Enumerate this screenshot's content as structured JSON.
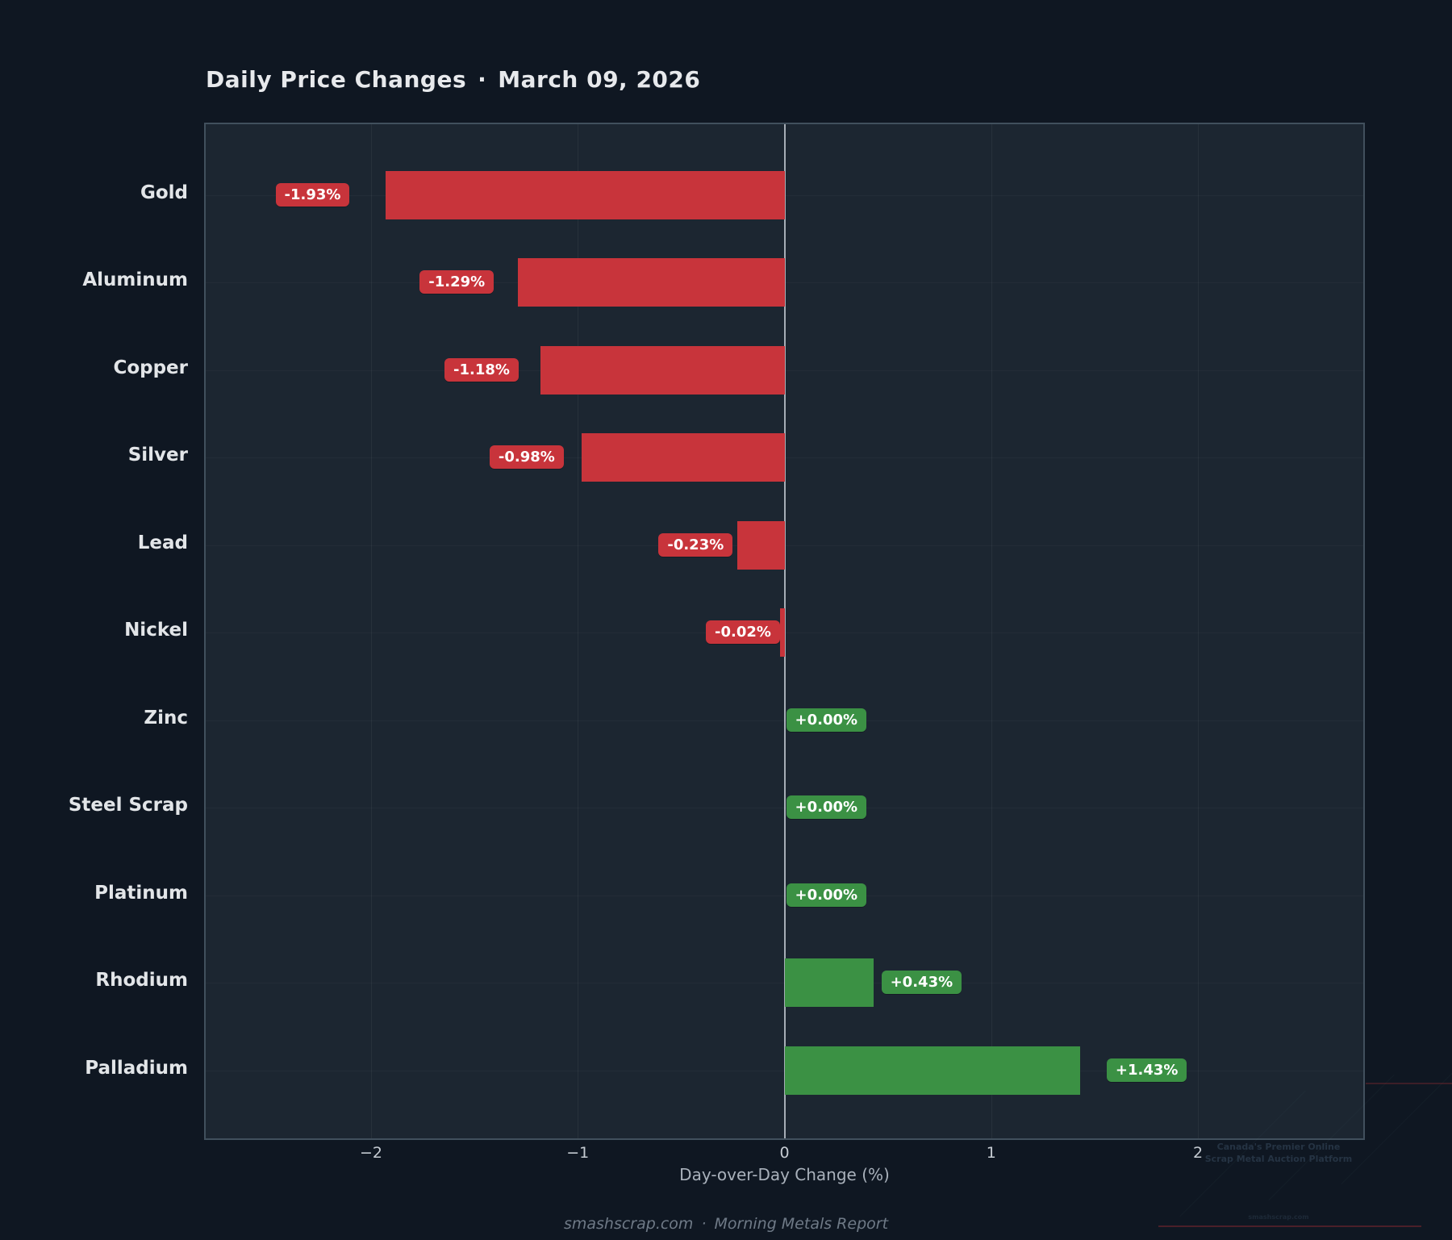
{
  "title": {
    "main": "Daily Price Changes",
    "separator": "·",
    "date": "March 09, 2026"
  },
  "chart_data": {
    "type": "bar",
    "orientation": "horizontal",
    "title": "Daily Price Changes · March 09, 2026",
    "categories": [
      "Gold",
      "Aluminum",
      "Copper",
      "Silver",
      "Lead",
      "Nickel",
      "Zinc",
      "Steel Scrap",
      "Platinum",
      "Rhodium",
      "Palladium"
    ],
    "values": [
      -1.93,
      -1.29,
      -1.18,
      -0.98,
      -0.23,
      -0.02,
      0.0,
      0.0,
      0.0,
      0.43,
      1.43
    ],
    "bar_labels": [
      "-1.93%",
      "-1.29%",
      "-1.18%",
      "-0.98%",
      "-0.23%",
      "-0.02%",
      "+0.00%",
      "+0.00%",
      "+0.00%",
      "+0.43%",
      "+1.43%"
    ],
    "xlabel": "Day-over-Day Change (%)",
    "xlim": [
      -2.8,
      2.8
    ],
    "xticks": [
      -2,
      -1,
      0,
      1,
      2
    ],
    "xtick_labels": [
      "−2",
      "−1",
      "0",
      "1",
      "2"
    ],
    "grid": true,
    "legend": "none",
    "colors": {
      "negative_bar": "#c8343b",
      "positive_bar": "#3b9144",
      "page_background": "#0f1722",
      "plot_background": "#1c2631",
      "zero_line": "#a6aeb6"
    }
  },
  "footer": {
    "site": "smashscrap.com",
    "separator": "·",
    "report": "Morning Metals Report"
  },
  "watermark": {
    "line1": "Canada's Premier Online",
    "line2": "Scrap Metal Auction Platform",
    "site": "smashscrap.com"
  }
}
